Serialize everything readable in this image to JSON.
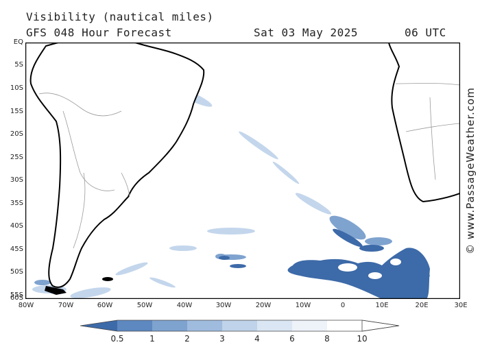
{
  "header": {
    "title": "Visibility (nautical miles)",
    "subtitle": "GFS 048 Hour Forecast",
    "date": "Sat 03 May 2025",
    "time": "06 UTC"
  },
  "axes": {
    "lat_labels": [
      "EQ",
      "5S",
      "10S",
      "15S",
      "20S",
      "25S",
      "30S",
      "35S",
      "40S",
      "45S",
      "50S",
      "55S",
      "60S"
    ],
    "lon_labels": [
      "80W",
      "70W",
      "60W",
      "50W",
      "40W",
      "30W",
      "20W",
      "10W",
      "0",
      "10E",
      "20E",
      "30E"
    ]
  },
  "credit": "© www.PassageWeather.com",
  "legend": {
    "labels": [
      "0.5",
      "1",
      "2",
      "3",
      "4",
      "6",
      "8",
      "10"
    ],
    "colors": [
      "#3d6aa8",
      "#5d88c0",
      "#7fa3cf",
      "#9fbcdf",
      "#bfd3ea",
      "#dae6f3",
      "#eef3fa",
      "#ffffff"
    ]
  },
  "colors": {
    "coast": "#000000",
    "border": "#9a9a9a",
    "low_vis": "#3d6aa8",
    "mid_vis": "#7fa3cf",
    "light_vis": "#c3d6ec"
  }
}
